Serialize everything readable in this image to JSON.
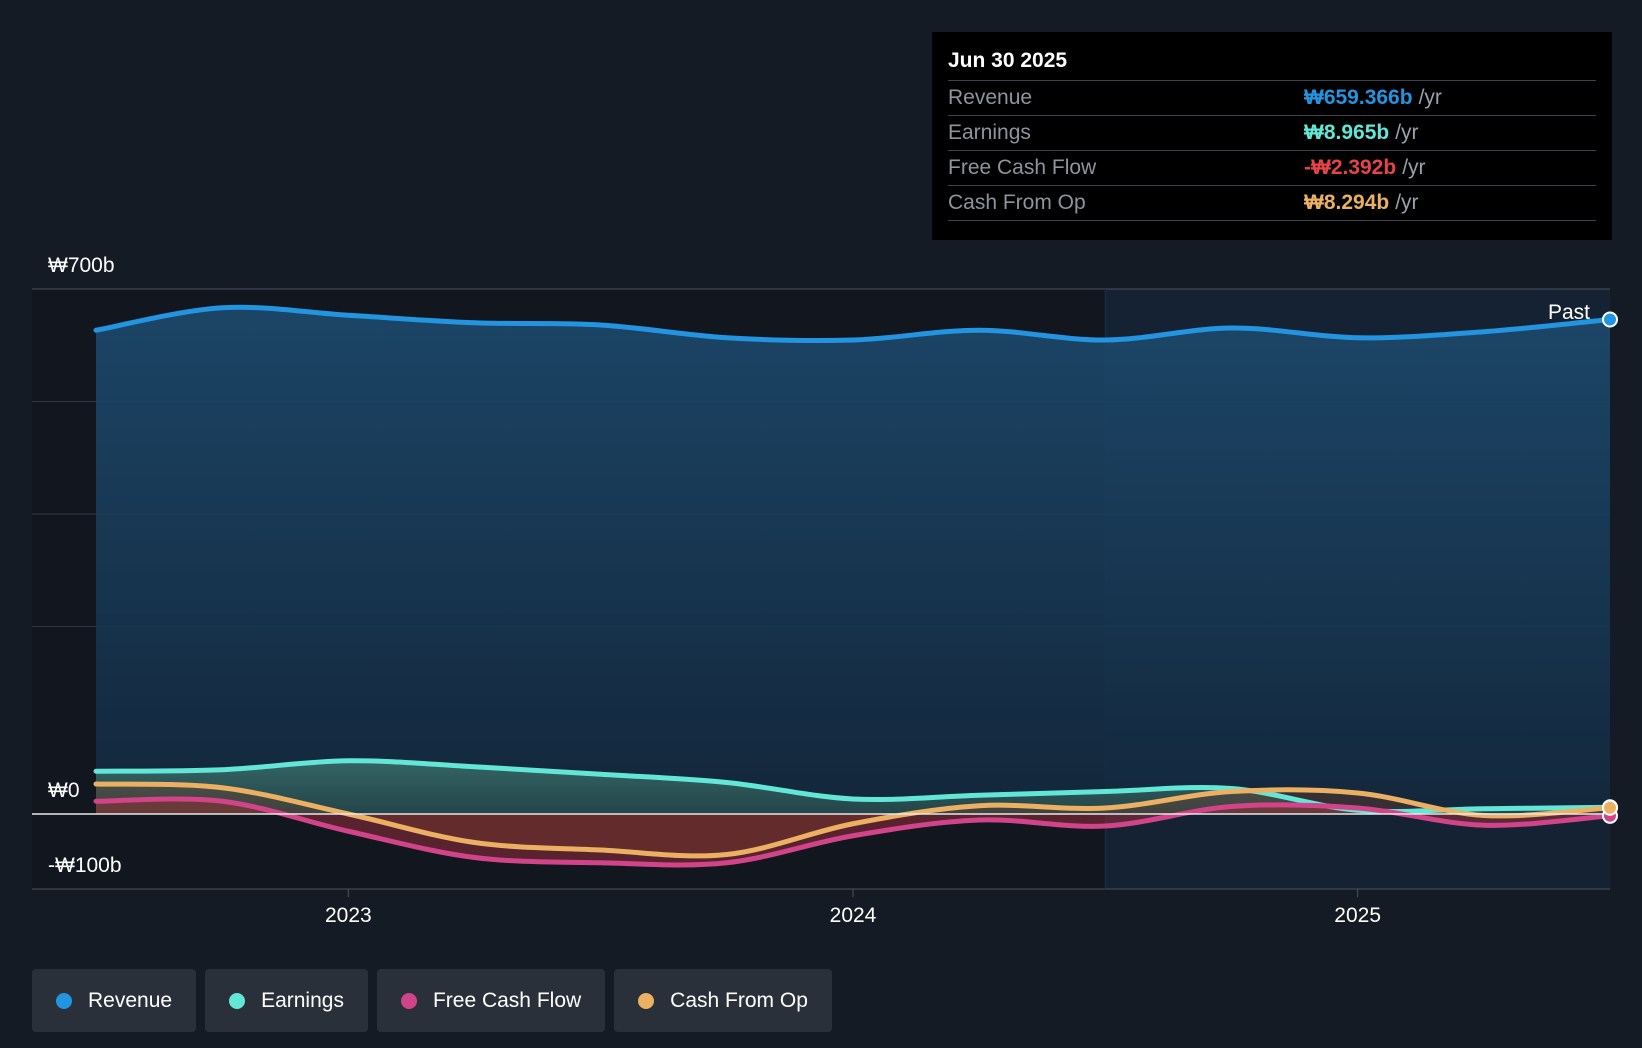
{
  "chart_data": {
    "type": "area",
    "y_axis": {
      "min": -100,
      "max": 700,
      "unit": "₩b",
      "labels": [
        "₩700b",
        "₩0",
        "-₩100b"
      ]
    },
    "x_axis": {
      "ticks": [
        "2023",
        "2024",
        "2025"
      ]
    },
    "past_label": "Past",
    "series": [
      {
        "name": "Revenue",
        "color": "#2394e0",
        "points": [
          [
            2022.5,
            645
          ],
          [
            2022.75,
            675
          ],
          [
            2023.0,
            665
          ],
          [
            2023.25,
            655
          ],
          [
            2023.5,
            652
          ],
          [
            2023.75,
            635
          ],
          [
            2024.0,
            632
          ],
          [
            2024.25,
            645
          ],
          [
            2024.5,
            632
          ],
          [
            2024.75,
            648
          ],
          [
            2025.0,
            635
          ],
          [
            2025.25,
            643
          ],
          [
            2025.5,
            659.366
          ]
        ]
      },
      {
        "name": "Earnings",
        "color": "#62e6d6",
        "points": [
          [
            2022.5,
            57
          ],
          [
            2022.75,
            59
          ],
          [
            2023.0,
            71
          ],
          [
            2023.25,
            63
          ],
          [
            2023.5,
            53
          ],
          [
            2023.75,
            42
          ],
          [
            2024.0,
            20
          ],
          [
            2024.25,
            25
          ],
          [
            2024.5,
            30
          ],
          [
            2024.75,
            34
          ],
          [
            2025.0,
            5
          ],
          [
            2025.25,
            7
          ],
          [
            2025.5,
            8.965
          ]
        ]
      },
      {
        "name": "Free Cash Flow",
        "color": "#d2448a",
        "points": [
          [
            2022.5,
            17
          ],
          [
            2022.75,
            17
          ],
          [
            2023.0,
            -23
          ],
          [
            2023.25,
            -58
          ],
          [
            2023.5,
            -65
          ],
          [
            2023.75,
            -65
          ],
          [
            2024.0,
            -29
          ],
          [
            2024.25,
            -8
          ],
          [
            2024.5,
            -16
          ],
          [
            2024.75,
            10
          ],
          [
            2025.0,
            8
          ],
          [
            2025.25,
            -15
          ],
          [
            2025.5,
            -2.392
          ]
        ]
      },
      {
        "name": "Cash From Op",
        "color": "#ebb062",
        "points": [
          [
            2022.5,
            40
          ],
          [
            2022.75,
            35
          ],
          [
            2023.0,
            0
          ],
          [
            2023.25,
            -38
          ],
          [
            2023.5,
            -48
          ],
          [
            2023.75,
            -54
          ],
          [
            2024.0,
            -13
          ],
          [
            2024.25,
            11
          ],
          [
            2024.5,
            8
          ],
          [
            2024.75,
            30
          ],
          [
            2025.0,
            28
          ],
          [
            2025.25,
            -2
          ],
          [
            2025.5,
            8.294
          ]
        ]
      }
    ]
  },
  "tooltip": {
    "date": "Jun 30 2025",
    "rows": [
      {
        "label": "Revenue",
        "value": "₩659.366b",
        "unit": "/yr",
        "color": "#2394e0"
      },
      {
        "label": "Earnings",
        "value": "₩8.965b",
        "unit": "/yr",
        "color": "#62e6d6"
      },
      {
        "label": "Free Cash Flow",
        "value": "-₩2.392b",
        "unit": "/yr",
        "color": "#e8434b"
      },
      {
        "label": "Cash From Op",
        "value": "₩8.294b",
        "unit": "/yr",
        "color": "#ebb062"
      }
    ]
  },
  "legend": [
    {
      "label": "Revenue",
      "color": "#2394e0"
    },
    {
      "label": "Earnings",
      "color": "#62e6d6"
    },
    {
      "label": "Free Cash Flow",
      "color": "#d2448a"
    },
    {
      "label": "Cash From Op",
      "color": "#ebb062"
    }
  ]
}
